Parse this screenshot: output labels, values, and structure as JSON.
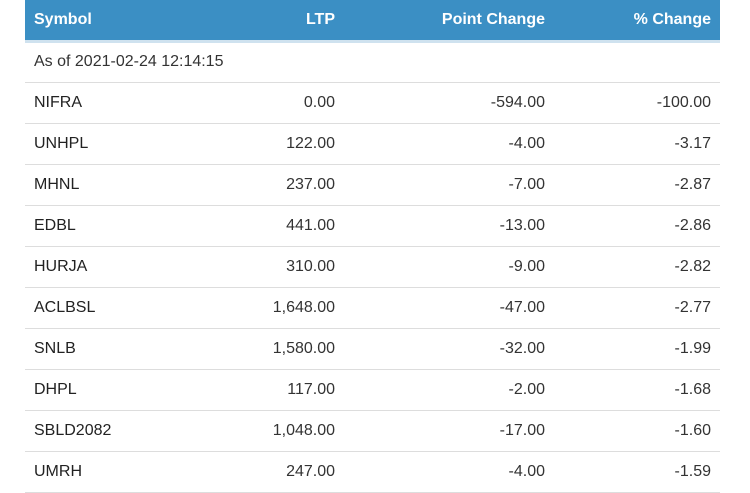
{
  "table": {
    "headers": {
      "symbol": "Symbol",
      "ltp": "LTP",
      "point_change": "Point Change",
      "pct_change": "% Change"
    },
    "as_of": "As of 2021-02-24 12:14:15",
    "rows": [
      {
        "symbol": "NIFRA",
        "ltp": "0.00",
        "point_change": "-594.00",
        "pct_change": "-100.00"
      },
      {
        "symbol": "UNHPL",
        "ltp": "122.00",
        "point_change": "-4.00",
        "pct_change": "-3.17"
      },
      {
        "symbol": "MHNL",
        "ltp": "237.00",
        "point_change": "-7.00",
        "pct_change": "-2.87"
      },
      {
        "symbol": "EDBL",
        "ltp": "441.00",
        "point_change": "-13.00",
        "pct_change": "-2.86"
      },
      {
        "symbol": "HURJA",
        "ltp": "310.00",
        "point_change": "-9.00",
        "pct_change": "-2.82"
      },
      {
        "symbol": "ACLBSL",
        "ltp": "1,648.00",
        "point_change": "-47.00",
        "pct_change": "-2.77"
      },
      {
        "symbol": "SNLB",
        "ltp": "1,580.00",
        "point_change": "-32.00",
        "pct_change": "-1.99"
      },
      {
        "symbol": "DHPL",
        "ltp": "117.00",
        "point_change": "-2.00",
        "pct_change": "-1.68"
      },
      {
        "symbol": "SBLD2082",
        "ltp": "1,048.00",
        "point_change": "-17.00",
        "pct_change": "-1.60"
      },
      {
        "symbol": "UMRH",
        "ltp": "247.00",
        "point_change": "-4.00",
        "pct_change": "-1.59"
      }
    ]
  },
  "colors": {
    "header_bg": "#3b8fc4",
    "header_text": "#ffffff",
    "row_border": "#dddddd"
  }
}
